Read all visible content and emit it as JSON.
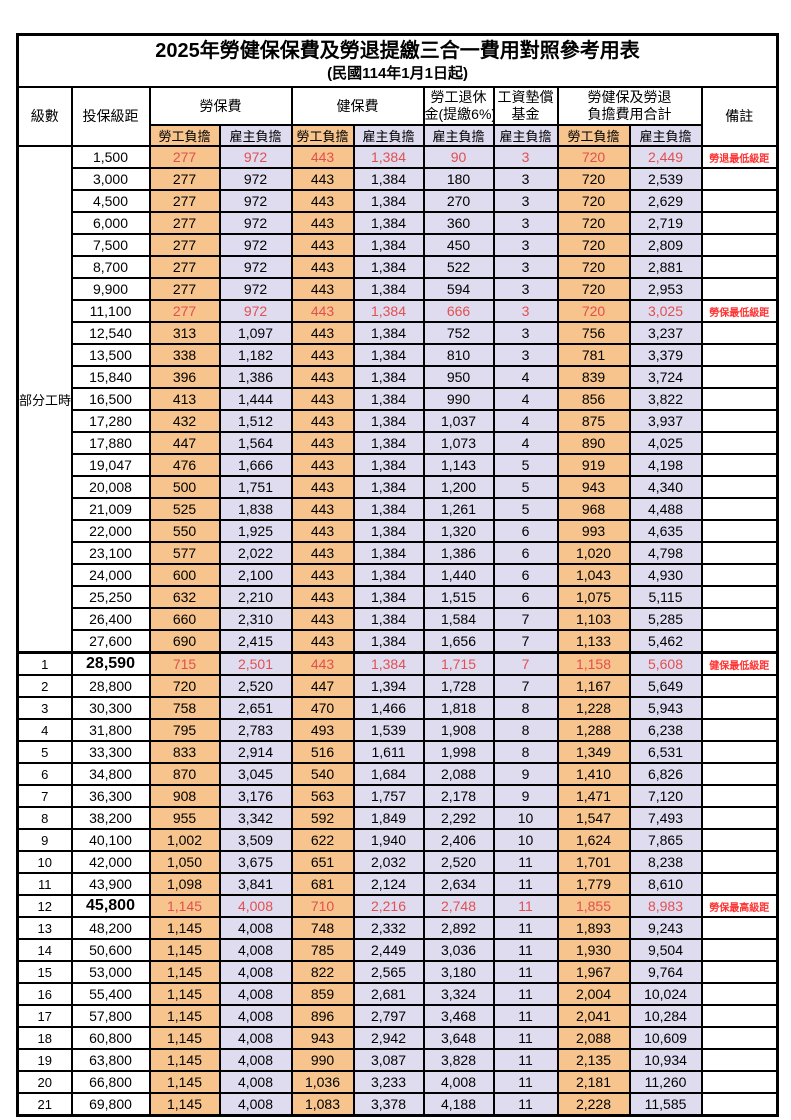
{
  "title": "2025年勞健保保費及勞退提繳三合一費用對照參考用表",
  "subtitle": "(民國114年1月1日起)",
  "colors": {
    "employee_column_bg": "#F6C48C",
    "employer_column_bg": "#DFDCF0",
    "highlight_text": "#E05050",
    "remark_text": "#FF3232",
    "grid_border": "#000000"
  },
  "header": {
    "level": "級數",
    "bracket": "投保級距",
    "labor_insurance": "勞保費",
    "health_insurance": "健保費",
    "pension_line1": "勞工退休",
    "pension_line2": "金(提繳6%)",
    "wage_fund_line1": "工資墊償",
    "wage_fund_line2": "基金",
    "total_line1": "勞健保及勞退",
    "total_line2": "負擔費用合計",
    "remark": "備註",
    "employee": "勞工負擔",
    "employer": "雇主負擔"
  },
  "part_time_label": "部分工時",
  "part_time_rowspan": 23,
  "rows": [
    {
      "level": "",
      "bracket": "1,500",
      "values": [
        "277",
        "972",
        "443",
        "1,384",
        "90",
        "3",
        "720",
        "2,449"
      ],
      "remark": "勞退最低級距",
      "hl": true
    },
    {
      "level": "",
      "bracket": "3,000",
      "values": [
        "277",
        "972",
        "443",
        "1,384",
        "180",
        "3",
        "720",
        "2,539"
      ],
      "remark": ""
    },
    {
      "level": "",
      "bracket": "4,500",
      "values": [
        "277",
        "972",
        "443",
        "1,384",
        "270",
        "3",
        "720",
        "2,629"
      ],
      "remark": ""
    },
    {
      "level": "",
      "bracket": "6,000",
      "values": [
        "277",
        "972",
        "443",
        "1,384",
        "360",
        "3",
        "720",
        "2,719"
      ],
      "remark": ""
    },
    {
      "level": "",
      "bracket": "7,500",
      "values": [
        "277",
        "972",
        "443",
        "1,384",
        "450",
        "3",
        "720",
        "2,809"
      ],
      "remark": ""
    },
    {
      "level": "",
      "bracket": "8,700",
      "values": [
        "277",
        "972",
        "443",
        "1,384",
        "522",
        "3",
        "720",
        "2,881"
      ],
      "remark": ""
    },
    {
      "level": "",
      "bracket": "9,900",
      "values": [
        "277",
        "972",
        "443",
        "1,384",
        "594",
        "3",
        "720",
        "2,953"
      ],
      "remark": ""
    },
    {
      "level": "",
      "bracket": "11,100",
      "values": [
        "277",
        "972",
        "443",
        "1,384",
        "666",
        "3",
        "720",
        "3,025"
      ],
      "remark": "勞保最低級距",
      "hl": true
    },
    {
      "level": "",
      "bracket": "12,540",
      "values": [
        "313",
        "1,097",
        "443",
        "1,384",
        "752",
        "3",
        "756",
        "3,237"
      ],
      "remark": ""
    },
    {
      "level": "",
      "bracket": "13,500",
      "values": [
        "338",
        "1,182",
        "443",
        "1,384",
        "810",
        "3",
        "781",
        "3,379"
      ],
      "remark": ""
    },
    {
      "level": "",
      "bracket": "15,840",
      "values": [
        "396",
        "1,386",
        "443",
        "1,384",
        "950",
        "4",
        "839",
        "3,724"
      ],
      "remark": ""
    },
    {
      "level": "",
      "bracket": "16,500",
      "values": [
        "413",
        "1,444",
        "443",
        "1,384",
        "990",
        "4",
        "856",
        "3,822"
      ],
      "remark": ""
    },
    {
      "level": "",
      "bracket": "17,280",
      "values": [
        "432",
        "1,512",
        "443",
        "1,384",
        "1,037",
        "4",
        "875",
        "3,937"
      ],
      "remark": ""
    },
    {
      "level": "",
      "bracket": "17,880",
      "values": [
        "447",
        "1,564",
        "443",
        "1,384",
        "1,073",
        "4",
        "890",
        "4,025"
      ],
      "remark": ""
    },
    {
      "level": "",
      "bracket": "19,047",
      "values": [
        "476",
        "1,666",
        "443",
        "1,384",
        "1,143",
        "5",
        "919",
        "4,198"
      ],
      "remark": ""
    },
    {
      "level": "",
      "bracket": "20,008",
      "values": [
        "500",
        "1,751",
        "443",
        "1,384",
        "1,200",
        "5",
        "943",
        "4,340"
      ],
      "remark": ""
    },
    {
      "level": "",
      "bracket": "21,009",
      "values": [
        "525",
        "1,838",
        "443",
        "1,384",
        "1,261",
        "5",
        "968",
        "4,488"
      ],
      "remark": ""
    },
    {
      "level": "",
      "bracket": "22,000",
      "values": [
        "550",
        "1,925",
        "443",
        "1,384",
        "1,320",
        "6",
        "993",
        "4,635"
      ],
      "remark": ""
    },
    {
      "level": "",
      "bracket": "23,100",
      "values": [
        "577",
        "2,022",
        "443",
        "1,384",
        "1,386",
        "6",
        "1,020",
        "4,798"
      ],
      "remark": ""
    },
    {
      "level": "",
      "bracket": "24,000",
      "values": [
        "600",
        "2,100",
        "443",
        "1,384",
        "1,440",
        "6",
        "1,043",
        "4,930"
      ],
      "remark": ""
    },
    {
      "level": "",
      "bracket": "25,250",
      "values": [
        "632",
        "2,210",
        "443",
        "1,384",
        "1,515",
        "6",
        "1,075",
        "5,115"
      ],
      "remark": ""
    },
    {
      "level": "",
      "bracket": "26,400",
      "values": [
        "660",
        "2,310",
        "443",
        "1,384",
        "1,584",
        "7",
        "1,103",
        "5,285"
      ],
      "remark": ""
    },
    {
      "level": "",
      "bracket": "27,600",
      "values": [
        "690",
        "2,415",
        "443",
        "1,384",
        "1,656",
        "7",
        "1,133",
        "5,462"
      ],
      "remark": ""
    },
    {
      "level": "1",
      "bracket": "28,590",
      "values": [
        "715",
        "2,501",
        "443",
        "1,384",
        "1,715",
        "7",
        "1,158",
        "5,608"
      ],
      "remark": "健保最低級距",
      "hl": true,
      "big": true,
      "sep": true
    },
    {
      "level": "2",
      "bracket": "28,800",
      "values": [
        "720",
        "2,520",
        "447",
        "1,394",
        "1,728",
        "7",
        "1,167",
        "5,649"
      ],
      "remark": ""
    },
    {
      "level": "3",
      "bracket": "30,300",
      "values": [
        "758",
        "2,651",
        "470",
        "1,466",
        "1,818",
        "8",
        "1,228",
        "5,943"
      ],
      "remark": ""
    },
    {
      "level": "4",
      "bracket": "31,800",
      "values": [
        "795",
        "2,783",
        "493",
        "1,539",
        "1,908",
        "8",
        "1,288",
        "6,238"
      ],
      "remark": ""
    },
    {
      "level": "5",
      "bracket": "33,300",
      "values": [
        "833",
        "2,914",
        "516",
        "1,611",
        "1,998",
        "8",
        "1,349",
        "6,531"
      ],
      "remark": ""
    },
    {
      "level": "6",
      "bracket": "34,800",
      "values": [
        "870",
        "3,045",
        "540",
        "1,684",
        "2,088",
        "9",
        "1,410",
        "6,826"
      ],
      "remark": ""
    },
    {
      "level": "7",
      "bracket": "36,300",
      "values": [
        "908",
        "3,176",
        "563",
        "1,757",
        "2,178",
        "9",
        "1,471",
        "7,120"
      ],
      "remark": ""
    },
    {
      "level": "8",
      "bracket": "38,200",
      "values": [
        "955",
        "3,342",
        "592",
        "1,849",
        "2,292",
        "10",
        "1,547",
        "7,493"
      ],
      "remark": ""
    },
    {
      "level": "9",
      "bracket": "40,100",
      "values": [
        "1,002",
        "3,509",
        "622",
        "1,940",
        "2,406",
        "10",
        "1,624",
        "7,865"
      ],
      "remark": ""
    },
    {
      "level": "10",
      "bracket": "42,000",
      "values": [
        "1,050",
        "3,675",
        "651",
        "2,032",
        "2,520",
        "11",
        "1,701",
        "8,238"
      ],
      "remark": ""
    },
    {
      "level": "11",
      "bracket": "43,900",
      "values": [
        "1,098",
        "3,841",
        "681",
        "2,124",
        "2,634",
        "11",
        "1,779",
        "8,610"
      ],
      "remark": ""
    },
    {
      "level": "12",
      "bracket": "45,800",
      "values": [
        "1,145",
        "4,008",
        "710",
        "2,216",
        "2,748",
        "11",
        "1,855",
        "8,983"
      ],
      "remark": "勞保最高級距",
      "hl": true,
      "big": true
    },
    {
      "level": "13",
      "bracket": "48,200",
      "values": [
        "1,145",
        "4,008",
        "748",
        "2,332",
        "2,892",
        "11",
        "1,893",
        "9,243"
      ],
      "remark": ""
    },
    {
      "level": "14",
      "bracket": "50,600",
      "values": [
        "1,145",
        "4,008",
        "785",
        "2,449",
        "3,036",
        "11",
        "1,930",
        "9,504"
      ],
      "remark": ""
    },
    {
      "level": "15",
      "bracket": "53,000",
      "values": [
        "1,145",
        "4,008",
        "822",
        "2,565",
        "3,180",
        "11",
        "1,967",
        "9,764"
      ],
      "remark": ""
    },
    {
      "level": "16",
      "bracket": "55,400",
      "values": [
        "1,145",
        "4,008",
        "859",
        "2,681",
        "3,324",
        "11",
        "2,004",
        "10,024"
      ],
      "remark": ""
    },
    {
      "level": "17",
      "bracket": "57,800",
      "values": [
        "1,145",
        "4,008",
        "896",
        "2,797",
        "3,468",
        "11",
        "2,041",
        "10,284"
      ],
      "remark": ""
    },
    {
      "level": "18",
      "bracket": "60,800",
      "values": [
        "1,145",
        "4,008",
        "943",
        "2,942",
        "3,648",
        "11",
        "2,088",
        "10,609"
      ],
      "remark": ""
    },
    {
      "level": "19",
      "bracket": "63,800",
      "values": [
        "1,145",
        "4,008",
        "990",
        "3,087",
        "3,828",
        "11",
        "2,135",
        "10,934"
      ],
      "remark": ""
    },
    {
      "level": "20",
      "bracket": "66,800",
      "values": [
        "1,145",
        "4,008",
        "1,036",
        "3,233",
        "4,008",
        "11",
        "2,181",
        "11,260"
      ],
      "remark": ""
    },
    {
      "level": "21",
      "bracket": "69,800",
      "values": [
        "1,145",
        "4,008",
        "1,083",
        "3,378",
        "4,188",
        "11",
        "2,228",
        "11,585"
      ],
      "remark": ""
    }
  ]
}
